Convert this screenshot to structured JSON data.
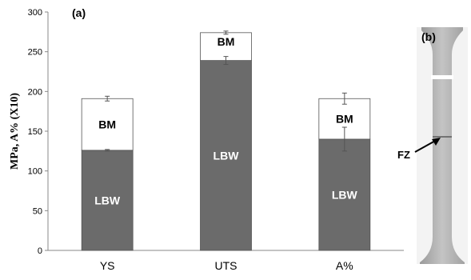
{
  "panel_a_label": "(a)",
  "panel_b_label": "(b)",
  "photo_annotation": "FZ",
  "chart_data": {
    "type": "bar",
    "stacked": true,
    "ylabel": "MPa, A% (X10)",
    "ylim": [
      0,
      300
    ],
    "yticks": [
      0,
      50,
      100,
      150,
      200,
      250,
      300
    ],
    "categories": [
      "YS",
      "UTS",
      "A%"
    ],
    "series": [
      {
        "name": "LBW",
        "color": "#6b6b6b",
        "label_color": "#ffffff",
        "values": [
          126,
          239,
          140
        ],
        "error": [
          1,
          5,
          15
        ]
      },
      {
        "name": "BM",
        "color": "#ffffff",
        "label_color": "#000000",
        "values": [
          65,
          35,
          51
        ],
        "error": [
          3,
          2,
          7
        ]
      }
    ],
    "segment_labels": [
      [
        "LBW",
        "LBW",
        "LBW"
      ],
      [
        "BM",
        "",
        "BM"
      ]
    ],
    "bm_top_labels": [
      "",
      "BM",
      ""
    ],
    "grid": false
  }
}
